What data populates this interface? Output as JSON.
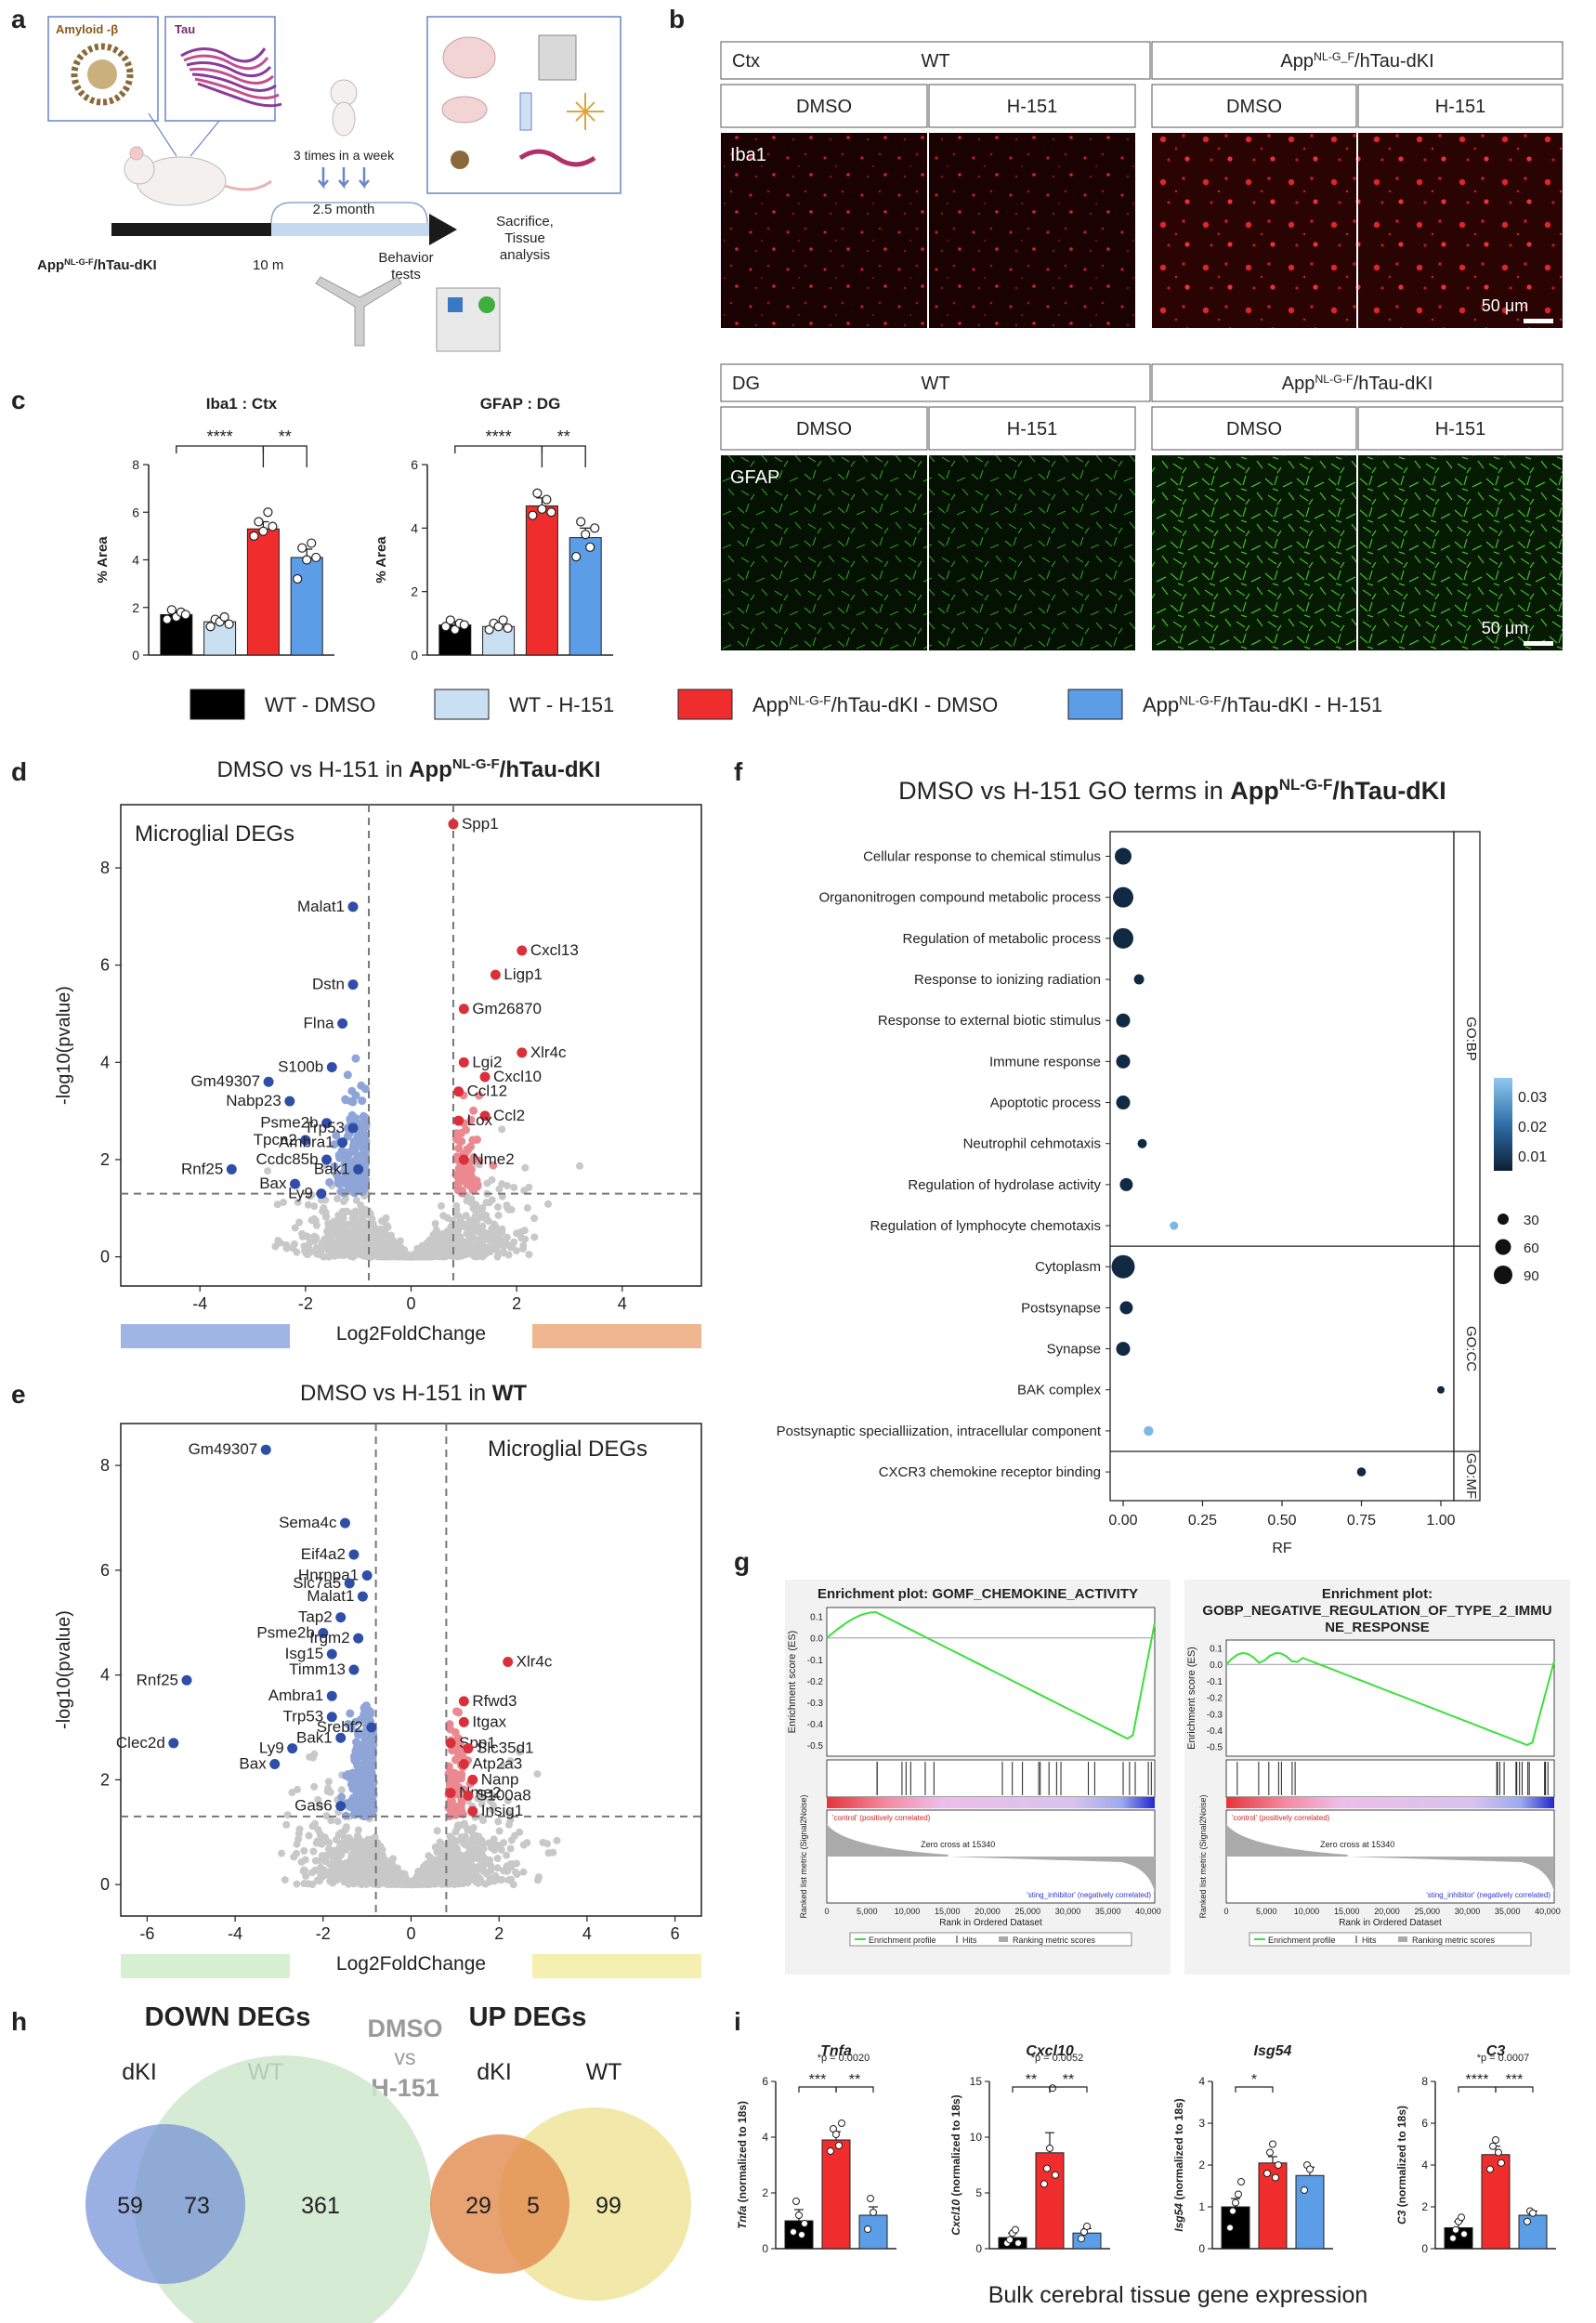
{
  "panel_letters": [
    "a",
    "b",
    "c",
    "d",
    "e",
    "f",
    "g",
    "h",
    "i"
  ],
  "colors": {
    "wt_dmso": "#000000",
    "wt_h151": "#c9dff2",
    "dki_dmso": "#f02d2d",
    "dki_h151": "#5b9de6",
    "down_deg": "#2f4ea8",
    "down_deg_light": "#8fa5d8",
    "up_deg": "#d9313c",
    "up_deg_light": "#ea8a90",
    "ns": "#c8c8c8",
    "iba1": "#d21f1f",
    "gfap": "#3ea528",
    "venn_dki_down": "#6f8fd6",
    "venn_wt_down": "#cfe8cc",
    "venn_dki_up": "#e28a4e",
    "venn_wt_up": "#efe49a"
  },
  "panel_a": {
    "amyloid_label": "Amyloid -β",
    "tau_label": "Tau",
    "model": "App",
    "model_sup": "NL-G-F",
    "model_tail": "/hTau-dKI",
    "dosing": "3 times in a week",
    "duration": "2.5 month",
    "age_start": "10 m",
    "behavior_line1": "Behavior",
    "behavior_line2": "tests",
    "end_line1": "Sacrifice,",
    "end_line2": "Tissue",
    "end_line3": "analysis"
  },
  "panel_b": {
    "block1": {
      "region": "Ctx",
      "wt": "WT",
      "dki": "App",
      "dki_sup": "NL-G_F",
      "dki_tail": "/hTau-dKI",
      "dmso": "DMSO",
      "h151": "H-151",
      "stain": "Iba1",
      "scale": "50 μm"
    },
    "block2": {
      "region": "DG",
      "wt": "WT",
      "dki": "App",
      "dki_sup": "NL-G-F",
      "dki_tail": "/hTau-dKI",
      "dmso": "DMSO",
      "h151": "H-151",
      "stain": "GFAP",
      "scale": "50 μm"
    }
  },
  "panel_c": {
    "charts": [
      {
        "title": "Iba1 : Ctx",
        "ylabel": "% Area",
        "yticks": [
          "0",
          "2",
          "4",
          "6",
          "8"
        ],
        "ymax": 8,
        "means": [
          1.7,
          1.4,
          5.3,
          4.1
        ],
        "sem": [
          0.15,
          0.12,
          0.3,
          0.35
        ],
        "points": [
          [
            1.5,
            1.9,
            1.6,
            1.8,
            1.7
          ],
          [
            1.2,
            1.5,
            1.4,
            1.6,
            1.3
          ],
          [
            5.0,
            5.6,
            5.2,
            6.0,
            5.4
          ],
          [
            3.2,
            4.5,
            4.0,
            4.7,
            4.1
          ]
        ],
        "sig": [
          {
            "label": "****"
          },
          {
            "label": "**"
          }
        ]
      },
      {
        "title": "GFAP : DG",
        "ylabel": "% Area",
        "yticks": [
          "0",
          "2",
          "4",
          "6"
        ],
        "ymax": 6,
        "means": [
          0.95,
          0.9,
          4.7,
          3.7
        ],
        "sem": [
          0.1,
          0.1,
          0.25,
          0.3
        ],
        "points": [
          [
            0.9,
            1.1,
            0.8,
            1.0,
            0.95
          ],
          [
            0.8,
            1.0,
            0.9,
            1.1,
            0.85
          ],
          [
            4.4,
            5.1,
            4.6,
            4.9,
            4.5
          ],
          [
            3.1,
            4.2,
            3.8,
            3.4,
            4.0
          ]
        ],
        "sig": [
          {
            "label": "****"
          },
          {
            "label": "**"
          }
        ]
      }
    ],
    "legend": [
      {
        "text": "WT - DMSO",
        "sup": "",
        "pre": ""
      },
      {
        "text": "WT - H-151",
        "sup": "",
        "pre": ""
      },
      {
        "pre": "App",
        "sup": "NL-G-F",
        "text": "/hTau-dKI - DMSO"
      },
      {
        "pre": "App",
        "sup": "NL-G-F",
        "text": "/hTau-dKI - H-151"
      }
    ]
  },
  "panel_d": {
    "title_pre": "DMSO vs H-151 in ",
    "title_bold": "App",
    "title_sup": "NL-G-F",
    "title_bold_tail": "/hTau-dKI",
    "inset": "Microglial DEGs",
    "xlabel": "Log2FoldChange",
    "ylabel": "-log10(pvalue)",
    "xticks": [
      "-4",
      "-2",
      "0",
      "2",
      "4"
    ],
    "yticks": [
      "0",
      "2",
      "4",
      "6",
      "8"
    ],
    "labels": [
      {
        "g": "Spp1",
        "x": 0.8,
        "y": 8.9
      },
      {
        "g": "Malat1",
        "x": -1.1,
        "y": 7.2
      },
      {
        "g": "Cxcl13",
        "x": 2.1,
        "y": 6.3
      },
      {
        "g": "Ligp1",
        "x": 1.6,
        "y": 5.8
      },
      {
        "g": "Dstn",
        "x": -1.1,
        "y": 5.6
      },
      {
        "g": "Gm26870",
        "x": 1.0,
        "y": 5.1
      },
      {
        "g": "Flna",
        "x": -1.3,
        "y": 4.8
      },
      {
        "g": "Xlr4c",
        "x": 2.1,
        "y": 4.2
      },
      {
        "g": "Lgi2",
        "x": 1.0,
        "y": 4.0
      },
      {
        "g": "S100b",
        "x": -1.5,
        "y": 3.9
      },
      {
        "g": "Cxcl10",
        "x": 1.4,
        "y": 3.7
      },
      {
        "g": "Gm49307",
        "x": -2.7,
        "y": 3.6
      },
      {
        "g": "Ccl12",
        "x": 0.9,
        "y": 3.4
      },
      {
        "g": "Nabp23",
        "x": -2.3,
        "y": 3.2
      },
      {
        "g": "Ccl2",
        "x": 1.4,
        "y": 2.9
      },
      {
        "g": "Lox",
        "x": 0.9,
        "y": 2.8
      },
      {
        "g": "Psme2b",
        "x": -1.6,
        "y": 2.75
      },
      {
        "g": "Trp53",
        "x": -1.1,
        "y": 2.65
      },
      {
        "g": "Tpcn2",
        "x": -2.0,
        "y": 2.4
      },
      {
        "g": "Ambra1",
        "x": -1.3,
        "y": 2.35
      },
      {
        "g": "Nme2",
        "x": 1.0,
        "y": 2.0
      },
      {
        "g": "Ccdc85b",
        "x": -1.6,
        "y": 2.0
      },
      {
        "g": "Rnf25",
        "x": -3.4,
        "y": 1.8
      },
      {
        "g": "Bak1",
        "x": -1.0,
        "y": 1.8
      },
      {
        "g": "Bax",
        "x": -2.2,
        "y": 1.5
      },
      {
        "g": "Ly9",
        "x": -1.7,
        "y": 1.3
      }
    ]
  },
  "panel_e": {
    "title_pre": "DMSO vs H-151 in ",
    "title_bold": "WT",
    "inset": "Microglial DEGs",
    "xlabel": "Log2FoldChange",
    "ylabel": "-log10(pvalue)",
    "xticks": [
      "-6",
      "-4",
      "-2",
      "0",
      "2",
      "4",
      "6"
    ],
    "yticks": [
      "0",
      "2",
      "4",
      "6",
      "8"
    ],
    "labels": [
      {
        "g": "Gm49307",
        "x": -3.3,
        "y": 8.3
      },
      {
        "g": "Sema4c",
        "x": -1.5,
        "y": 6.9
      },
      {
        "g": "Eif4a2",
        "x": -1.3,
        "y": 6.3
      },
      {
        "g": "Hnrnpa1",
        "x": -1.0,
        "y": 5.9
      },
      {
        "g": "Slc7a5",
        "x": -1.4,
        "y": 5.75
      },
      {
        "g": "Malat1",
        "x": -1.1,
        "y": 5.5
      },
      {
        "g": "Tap2",
        "x": -1.6,
        "y": 5.1
      },
      {
        "g": "Psme2b",
        "x": -2.0,
        "y": 4.8
      },
      {
        "g": "Irgm2",
        "x": -1.2,
        "y": 4.7
      },
      {
        "g": "Isg15",
        "x": -1.8,
        "y": 4.4
      },
      {
        "g": "Timm13",
        "x": -1.3,
        "y": 4.1
      },
      {
        "g": "Xlr4c",
        "x": 2.2,
        "y": 4.25
      },
      {
        "g": "Rnf25",
        "x": -5.1,
        "y": 3.9
      },
      {
        "g": "Ambra1",
        "x": -1.8,
        "y": 3.6
      },
      {
        "g": "Rfwd3",
        "x": 1.2,
        "y": 3.5
      },
      {
        "g": "Trp53",
        "x": -1.8,
        "y": 3.2
      },
      {
        "g": "Itgax",
        "x": 1.2,
        "y": 3.1
      },
      {
        "g": "Srebf2",
        "x": -0.9,
        "y": 3.0
      },
      {
        "g": "Bak1",
        "x": -1.6,
        "y": 2.8
      },
      {
        "g": "Spp1",
        "x": 0.9,
        "y": 2.7
      },
      {
        "g": "Slc35d1",
        "x": 1.3,
        "y": 2.6
      },
      {
        "g": "Ly9",
        "x": -2.7,
        "y": 2.6
      },
      {
        "g": "Clec2d",
        "x": -5.4,
        "y": 2.7
      },
      {
        "g": "Atp2a3",
        "x": 1.2,
        "y": 2.3
      },
      {
        "g": "Bax",
        "x": -3.1,
        "y": 2.3
      },
      {
        "g": "Nanp",
        "x": 1.4,
        "y": 2.0
      },
      {
        "g": "Nme2",
        "x": 0.9,
        "y": 1.75
      },
      {
        "g": "S100a8",
        "x": 1.3,
        "y": 1.7
      },
      {
        "g": "Gas6",
        "x": -1.6,
        "y": 1.5
      },
      {
        "g": "Insig1",
        "x": 1.4,
        "y": 1.4
      }
    ]
  },
  "panel_f": {
    "title_pre": "DMSO vs H-151 GO terms in ",
    "title_bold": "App",
    "title_sup": "NL-G-F",
    "title_bold_tail": "/hTau-dKI",
    "xlabel": "RF",
    "xticks": [
      "0.00",
      "0.25",
      "0.50",
      "0.75",
      "1.00"
    ],
    "groups": [
      "GO:BP",
      "GO:CC",
      "GO:MF"
    ],
    "terms": [
      {
        "t": "Cellular response to chemical stimulus",
        "rf": 0.0,
        "size": 60,
        "p": 0.0
      },
      {
        "t": "Organonitrogen compound metabolic process",
        "rf": 0.0,
        "size": 80,
        "p": 0.0
      },
      {
        "t": "Regulation of metabolic process",
        "rf": 0.0,
        "size": 80,
        "p": 0.0
      },
      {
        "t": "Response to ionizing radiation",
        "rf": 0.05,
        "size": 25,
        "p": 0.0
      },
      {
        "t": "Response to external biotic stimulus",
        "rf": 0.0,
        "size": 45,
        "p": 0.0
      },
      {
        "t": "Immune response",
        "rf": 0.0,
        "size": 45,
        "p": 0.0
      },
      {
        "t": "Apoptotic process",
        "rf": 0.0,
        "size": 45,
        "p": 0.0
      },
      {
        "t": "Neutrophil cehmotaxis",
        "rf": 0.06,
        "size": 20,
        "p": 0.005
      },
      {
        "t": "Regulation of hydrolase activity",
        "rf": 0.01,
        "size": 40,
        "p": 0.0
      },
      {
        "t": "Regulation of lymphocyte chemotaxis",
        "rf": 0.16,
        "size": 15,
        "p": 0.03
      },
      {
        "t": "Cytoplasm",
        "rf": 0.0,
        "size": 95,
        "p": 0.0
      },
      {
        "t": "Postsynapse",
        "rf": 0.01,
        "size": 40,
        "p": 0.0
      },
      {
        "t": "Synapse",
        "rf": 0.0,
        "size": 45,
        "p": 0.0
      },
      {
        "t": "BAK complex",
        "rf": 1.0,
        "size": 10,
        "p": 0.0
      },
      {
        "t": "Postsynaptic specialliization, intracellular component",
        "rf": 0.08,
        "size": 22,
        "p": 0.03
      },
      {
        "t": "CXCR3 chemokine receptor binding",
        "rf": 0.75,
        "size": 18,
        "p": 0.0
      }
    ],
    "color_legend": [
      "0.03",
      "0.02",
      "0.01"
    ],
    "size_legend": [
      "30",
      "60",
      "90"
    ]
  },
  "panel_g": {
    "plots": [
      {
        "title1": "Enrichment plot: GOMF_CHEMOKINE_ACTIVITY",
        "title2": "",
        "ylabel": "Enrichment score (ES)",
        "yticks": [
          "0.1",
          "0.0",
          "-0.1",
          "-0.2",
          "-0.3",
          "-0.4",
          "-0.5"
        ],
        "pos": "'control' (positively correlated)",
        "neg": "'sting_inhibitor' (negatively correlated)",
        "zero": "Zero cross at 15340",
        "metric": "Ranked list metric (Signal2Noise)",
        "xlabel": "Rank in Ordered Dataset",
        "xticks": [
          "0",
          "5,000",
          "10,000",
          "15,000",
          "20,000",
          "25,000",
          "30,000",
          "35,000",
          "40,000"
        ],
        "legend": [
          "Enrichment profile",
          "Hits",
          "Ranking metric scores"
        ]
      },
      {
        "title1": "Enrichment plot:",
        "title2": "GOBP_NEGATIVE_REGULATION_OF_TYPE_2_IMMU",
        "title3": "NE_RESPONSE",
        "ylabel": "Enrichment score (ES)",
        "yticks": [
          "0.1",
          "0.0",
          "-0.1",
          "-0.2",
          "-0.3",
          "-0.4",
          "-0.5"
        ],
        "pos": "'control' (positively correlated)",
        "neg": "'sting_inhibitor' (negatively correlated)",
        "zero": "Zero cross at 15340",
        "metric": "Ranked list metric (Signal2Noise)",
        "xlabel": "Rank in Ordered Dataset",
        "xticks": [
          "0",
          "5,000",
          "10,000",
          "15,000",
          "20,000",
          "25,000",
          "30,000",
          "35,000",
          "40,000"
        ],
        "legend": [
          "Enrichment profile",
          "Hits",
          "Ranking metric scores"
        ]
      }
    ]
  },
  "panel_h": {
    "down_title": "DOWN DEGs",
    "up_title": "UP DEGs",
    "center1": "DMSO",
    "center2": "vs",
    "center3": "H-151",
    "dki": "dKI",
    "wt": "WT",
    "down": {
      "left": "59",
      "mid": "73",
      "right": "361"
    },
    "up": {
      "left": "29",
      "mid": "5",
      "right": "99"
    }
  },
  "panel_i": {
    "caption": "Bulk cerebral tissue gene expression",
    "charts": [
      {
        "gene": "Tnfa",
        "ylabel": "(normalized to 18s)",
        "yticks": [
          "0",
          "2",
          "4",
          "6"
        ],
        "ymax": 6,
        "means": [
          1.0,
          3.9,
          1.2
        ],
        "sem": [
          0.4,
          0.3,
          0.3
        ],
        "points": [
          [
            0.6,
            1.7,
            1.2,
            0.5,
            0.9
          ],
          [
            3.5,
            4.3,
            4.1,
            3.7,
            4.5
          ],
          [
            0.7,
            1.8,
            1.3
          ]
        ],
        "sig": [
          "***",
          "**"
        ],
        "p": "*p = 0.0020"
      },
      {
        "gene": "Cxcl10",
        "ylabel": "(normalized to 18s)",
        "yticks": [
          "0",
          "5",
          "10",
          "15"
        ],
        "ymax": 15,
        "means": [
          1.0,
          8.6,
          1.4
        ],
        "sem": [
          0.4,
          1.8,
          0.4
        ],
        "points": [
          [
            0.5,
            0.8,
            1.4,
            1.7,
            0.5
          ],
          [
            5.8,
            7.2,
            9.0,
            14.4,
            6.6
          ],
          [
            0.9,
            1.5,
            2.0
          ]
        ],
        "sig": [
          "**",
          "**"
        ],
        "p": "*p = 0.0052"
      },
      {
        "gene": "Isg54",
        "ylabel": "(normalized to 18s)",
        "yticks": [
          "0",
          "1",
          "2",
          "3",
          "4"
        ],
        "ymax": 4,
        "means": [
          1.0,
          2.05,
          1.75
        ],
        "sem": [
          0.2,
          0.15,
          0.2
        ],
        "points": [
          [
            0.5,
            0.9,
            1.1,
            1.3,
            1.6
          ],
          [
            1.8,
            2.3,
            2.5,
            1.7,
            2.0
          ],
          [
            1.4,
            2.0,
            1.9
          ]
        ],
        "sig": [
          "*"
        ],
        "p": ""
      },
      {
        "gene": "C3",
        "ylabel": "(normalized to 18s)",
        "yticks": [
          "0",
          "2",
          "4",
          "6",
          "8"
        ],
        "ymax": 8,
        "means": [
          1.0,
          4.5,
          1.6
        ],
        "sem": [
          0.3,
          0.4,
          0.2
        ],
        "points": [
          [
            0.5,
            0.9,
            1.3,
            1.5,
            0.7
          ],
          [
            3.8,
            4.9,
            5.2,
            4.6,
            4.1
          ],
          [
            1.3,
            1.8,
            1.7
          ]
        ],
        "sig": [
          "****",
          "***"
        ],
        "p": "*p = 0.0007"
      }
    ]
  }
}
